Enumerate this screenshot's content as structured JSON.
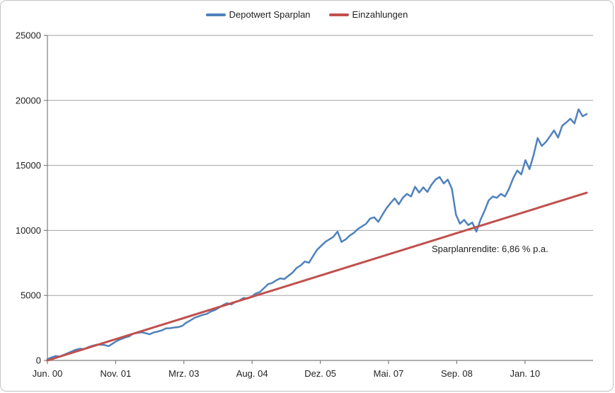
{
  "chart_data": {
    "type": "line",
    "title": "",
    "legend_position": "top-center",
    "grid": "horizontal",
    "y_axis": {
      "min": 0,
      "max": 25000,
      "tick_step": 5000,
      "ticks": [
        0,
        5000,
        10000,
        15000,
        20000,
        25000
      ]
    },
    "x_axis": {
      "tick_labels": [
        "Jun. 00",
        "Nov. 01",
        "Mrz. 03",
        "Aug. 04",
        "Dez. 05",
        "Mai. 07",
        "Sep. 08",
        "Jan. 10"
      ],
      "interval": "monthly",
      "start": "Jun 2000",
      "end": "Jun 2011",
      "n_points": 133
    },
    "series": [
      {
        "name": "Depotwert Sparplan",
        "color": "#4F81BD",
        "values": [
          100,
          230,
          340,
          300,
          430,
          560,
          700,
          830,
          900,
          870,
          1020,
          1130,
          1200,
          1220,
          1180,
          1100,
          1300,
          1500,
          1640,
          1760,
          1850,
          2060,
          2120,
          2160,
          2100,
          2010,
          2150,
          2220,
          2310,
          2460,
          2480,
          2530,
          2560,
          2660,
          2910,
          3080,
          3280,
          3390,
          3500,
          3580,
          3760,
          3880,
          4060,
          4260,
          4400,
          4310,
          4490,
          4610,
          4810,
          4760,
          4900,
          5150,
          5260,
          5560,
          5860,
          5960,
          6160,
          6310,
          6260,
          6510,
          6760,
          7110,
          7310,
          7610,
          7510,
          8010,
          8510,
          8810,
          9110,
          9310,
          9510,
          9910,
          9110,
          9310,
          9610,
          9810,
          10110,
          10310,
          10510,
          10910,
          11010,
          10660,
          11210,
          11710,
          12110,
          12460,
          12010,
          12510,
          12810,
          12610,
          13360,
          12910,
          13310,
          12960,
          13510,
          13910,
          14110,
          13610,
          13910,
          13210,
          11210,
          10510,
          10810,
          10410,
          10610,
          9910,
          10810,
          11510,
          12310,
          12610,
          12510,
          12810,
          12610,
          13210,
          14010,
          14610,
          14310,
          15410,
          14710,
          15800,
          17100,
          16500,
          16800,
          17230,
          17690,
          17140,
          18050,
          18300,
          18590,
          18230,
          19320,
          18780,
          18950
        ]
      },
      {
        "name": "Einzahlungen",
        "color": "#C0504D",
        "shape": "linear",
        "values_endpoints": [
          0,
          12900
        ]
      }
    ],
    "annotation": "Sparplanrendite: 6,86 % p.a."
  },
  "legend": {
    "items": [
      {
        "label": "Depotwert Sparplan",
        "color": "#4F81BD"
      },
      {
        "label": "Einzahlungen",
        "color": "#C0504D"
      }
    ]
  },
  "annotation": {
    "text": "Sparplanrendite: 6,86 % p.a."
  },
  "colors": {
    "grid": "#A3A3A3",
    "axis": "#7F7F7F",
    "text": "#1F1F1F",
    "border": "#C3C3C3",
    "background": "#FFFFFF"
  }
}
